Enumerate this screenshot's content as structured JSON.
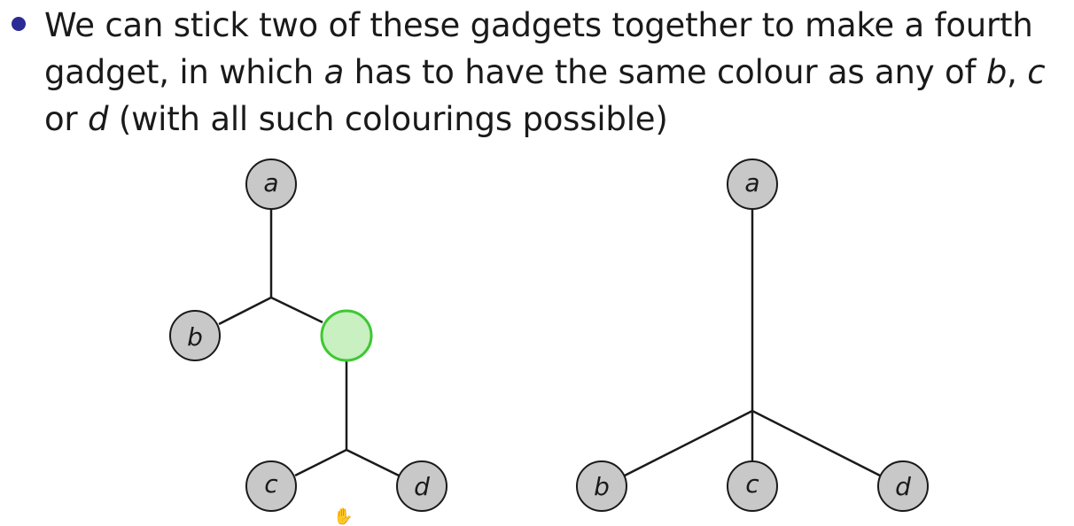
{
  "bullet": {
    "line1": "We can stick two of these gadgets together to make a fourth",
    "line2_a": "gadget, in which ",
    "line2_var_a": "a",
    "line2_b": " has to have the same colour as any of ",
    "line2_var_b": "b",
    "line2_c": ", ",
    "line2_var_c": "c",
    "line3_a": "or ",
    "line3_var_d": "d",
    "line3_b": " (with all such colourings possible)"
  },
  "left_gadget": {
    "nodes": {
      "a": "a",
      "b": "b",
      "c": "c",
      "d": "d"
    },
    "middle_node": "unlabelled green node"
  },
  "right_gadget": {
    "nodes": {
      "a": "a",
      "b": "b",
      "c": "c",
      "d": "d"
    }
  },
  "colors": {
    "node_fill": "#c8c8c8",
    "node_stroke": "#1a1a1a",
    "green_fill": "#c8f0c0",
    "green_stroke": "#3ec832",
    "bullet": "#2b2b96",
    "edge": "#1a1a1a"
  },
  "cursor": {
    "icon": "hand-cursor-icon"
  }
}
